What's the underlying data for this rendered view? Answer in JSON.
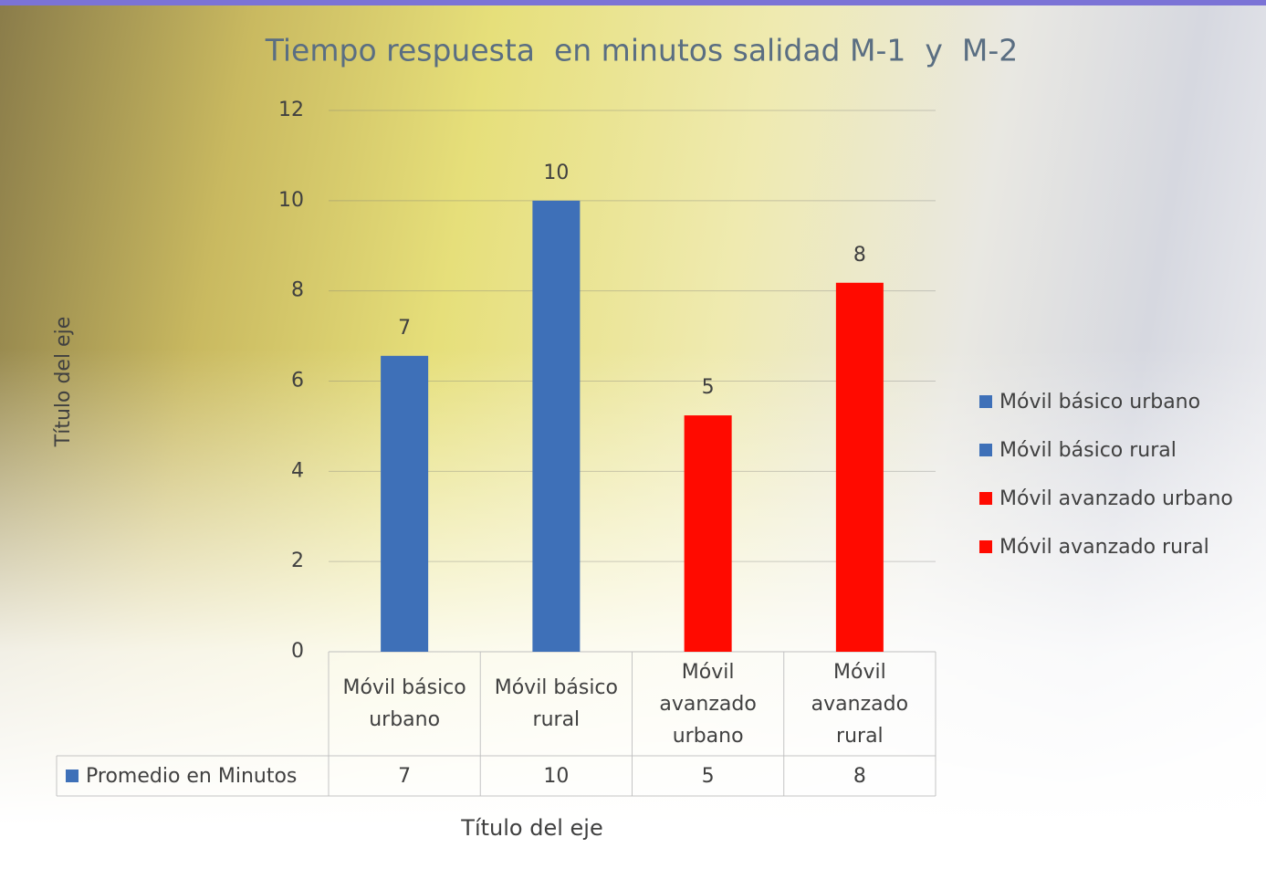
{
  "chart_data": {
    "type": "bar",
    "title": "Tiempo respuesta  en minutos salidad M-1  y  M-2",
    "y_axis_label": "Título del eje",
    "x_axis_label": "Título del eje",
    "categories": [
      "Móvil básico urbano",
      "Móvil básico rural",
      "Móvil avanzado urbano",
      "Móvil avanzado rural"
    ],
    "series": [
      {
        "name": "Promedio en Minutos",
        "color": "#3e70b8",
        "values": [
          6.56,
          10,
          5.24,
          8.18
        ],
        "value_labels": [
          "7",
          "10",
          "5",
          "8"
        ],
        "colors": [
          "#3e70b8",
          "#3e70b8",
          "#ff0a00",
          "#ff0a00"
        ]
      }
    ],
    "ylim": [
      0,
      12
    ],
    "yticks": [
      0,
      2,
      4,
      6,
      8,
      10,
      12
    ],
    "grid": true,
    "legend": "right"
  }
}
